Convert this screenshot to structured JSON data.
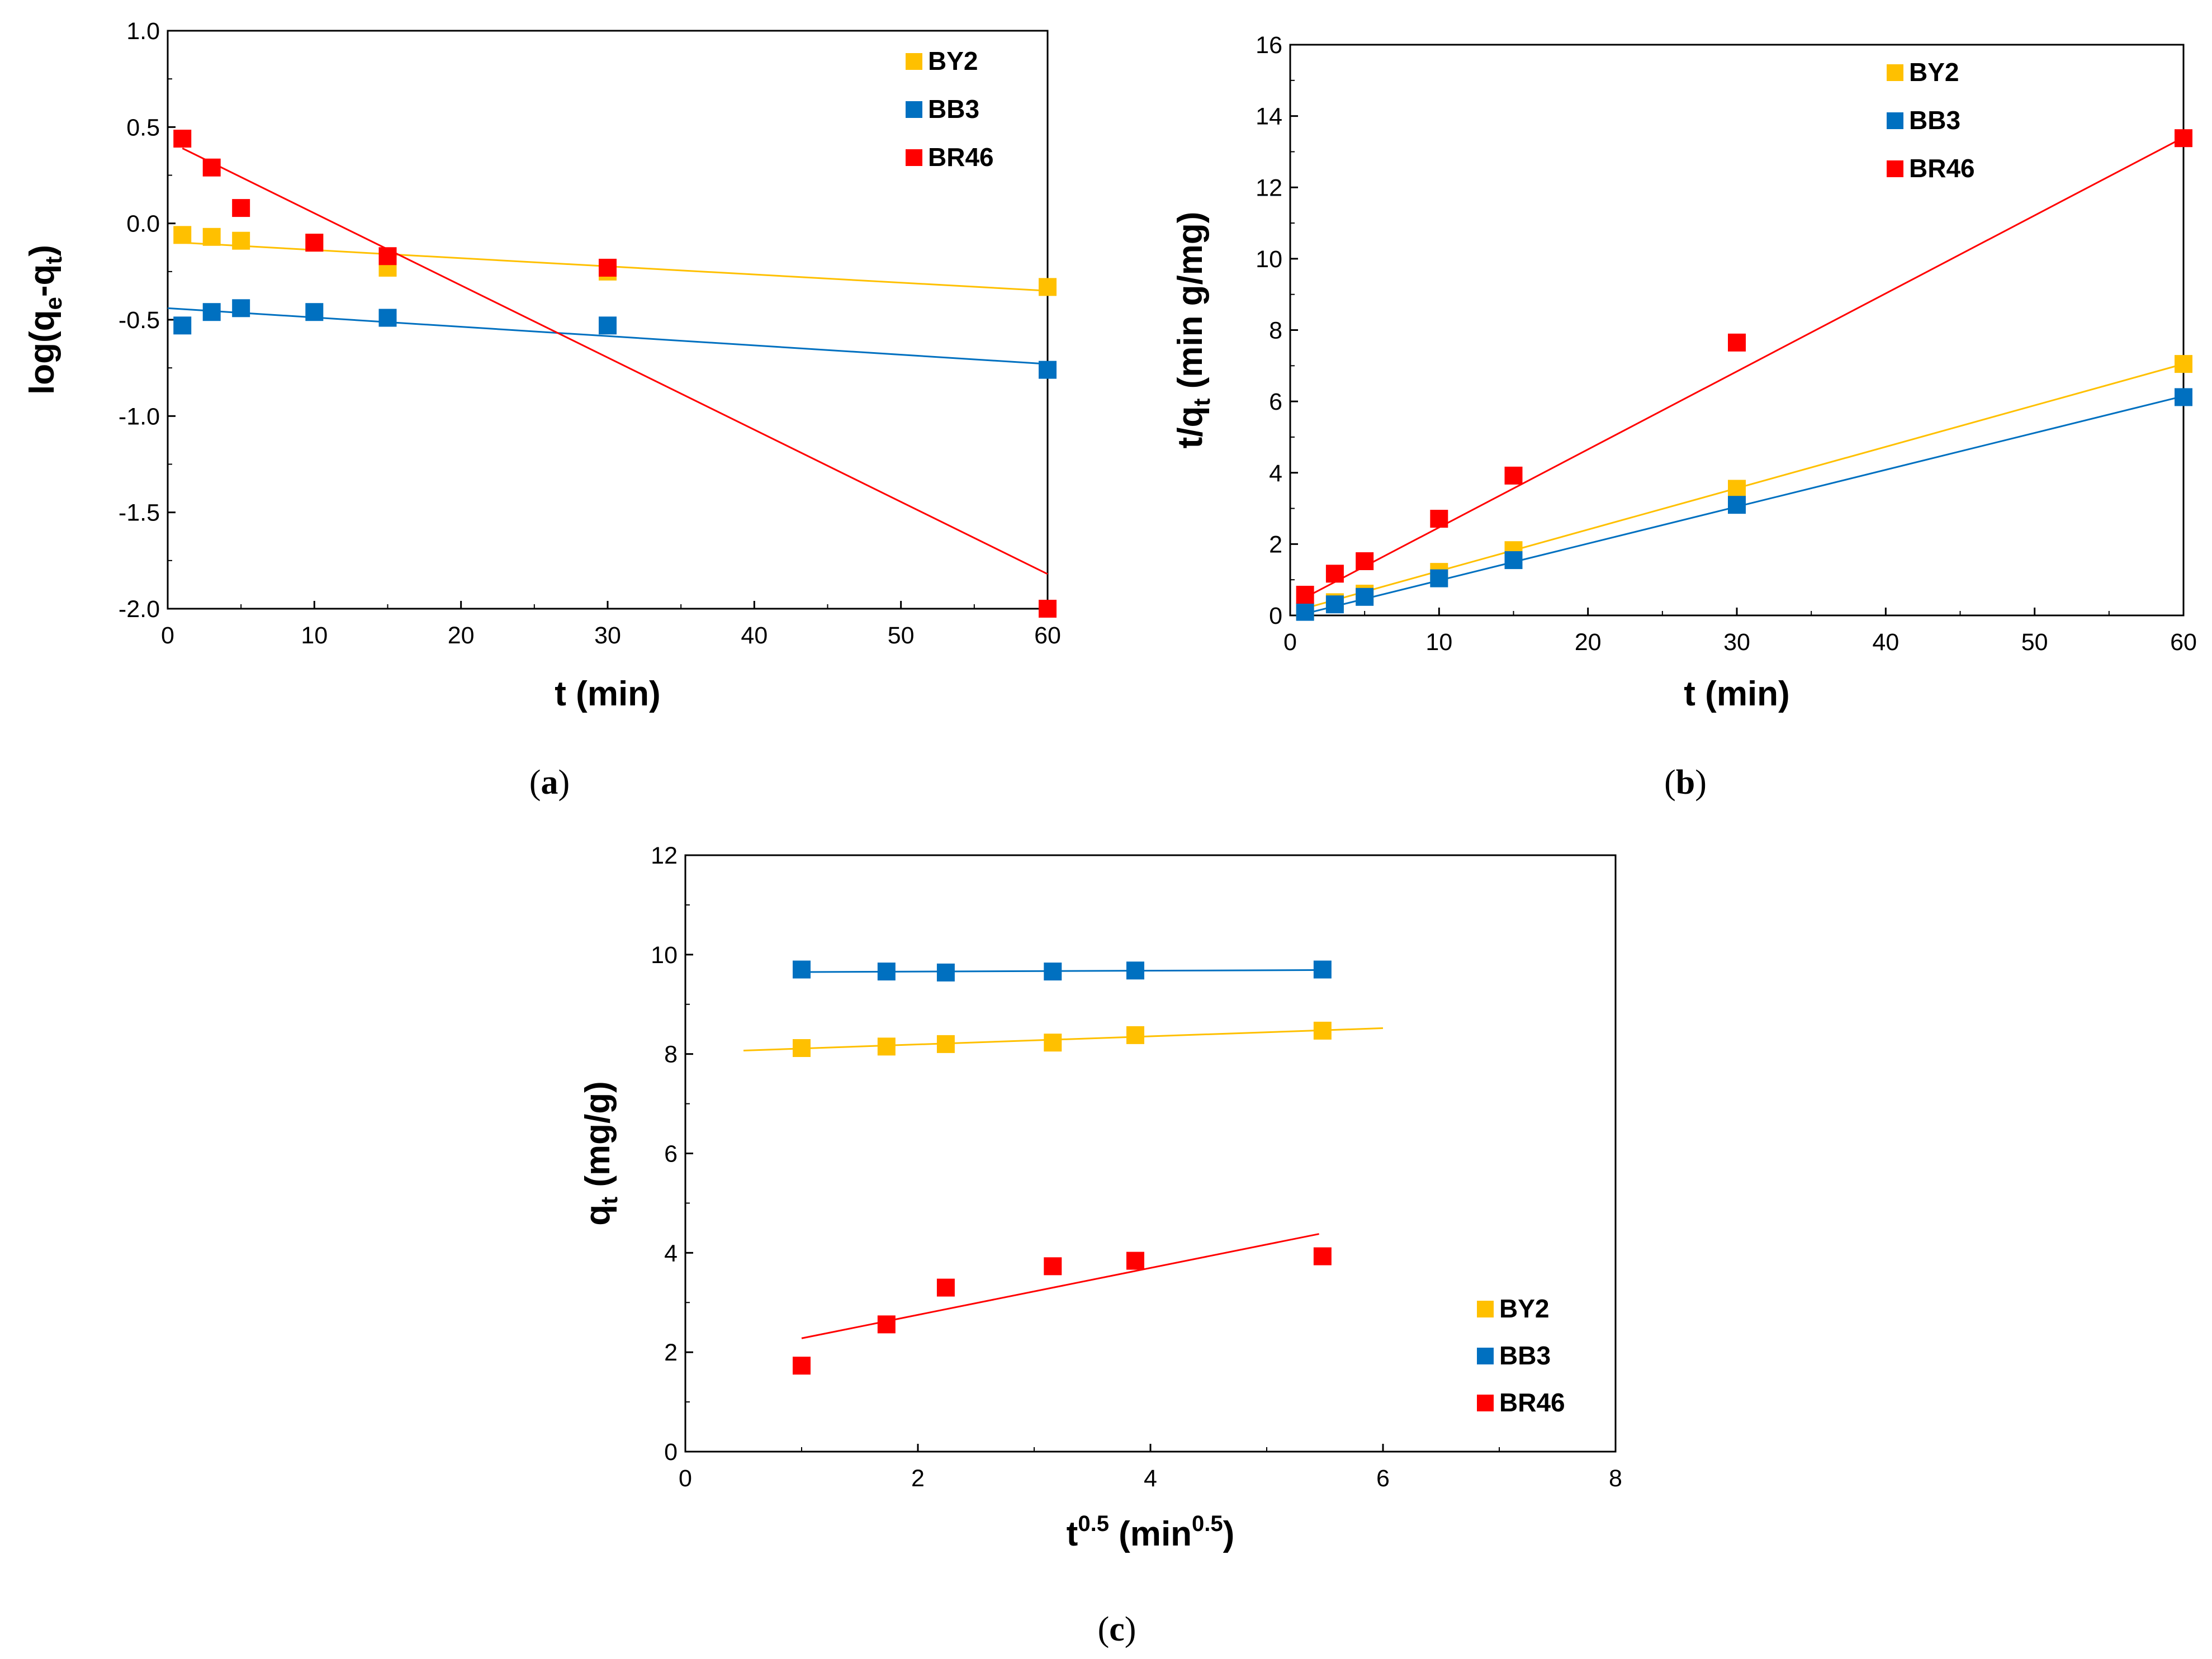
{
  "colors": {
    "BY2": "#FFC000",
    "BB3": "#0070C0",
    "BR46": "#FF0000",
    "axis": "#000000"
  },
  "chart_data": [
    {
      "id": "a",
      "type": "scatter",
      "caption_letter": "a",
      "xlabel": "t (min)",
      "ylabel_parts": {
        "base": "log(q",
        "sub1": "e",
        "mid": "-q",
        "sub2": "t",
        "end": ")"
      },
      "xlim": [
        0,
        60
      ],
      "ylim": [
        -2.0,
        1.0
      ],
      "xticks": [
        0,
        10,
        20,
        30,
        40,
        50,
        60
      ],
      "yticks": [
        -2.0,
        -1.5,
        -1.0,
        -0.5,
        0.0,
        0.5,
        1.0
      ],
      "ytick_labels": [
        "-2.0",
        "-1.5",
        "-1.0",
        "-0.5",
        "0.0",
        "0.5",
        "1.0"
      ],
      "legend_position": "top-right",
      "series": [
        {
          "name": "BY2",
          "color": "#FFC000",
          "x": [
            1,
            3,
            5,
            10,
            15,
            30,
            60
          ],
          "y": [
            -0.06,
            -0.07,
            -0.09,
            -0.1,
            -0.23,
            -0.25,
            -0.33
          ],
          "fit": {
            "x": [
              1,
              60
            ],
            "y": [
              -0.1,
              -0.35
            ]
          }
        },
        {
          "name": "BB3",
          "color": "#0070C0",
          "x": [
            1,
            3,
            5,
            10,
            15,
            30,
            60
          ],
          "y": [
            -0.53,
            -0.46,
            -0.44,
            -0.46,
            -0.49,
            -0.53,
            -0.76
          ],
          "fit": {
            "x": [
              0,
              60
            ],
            "y": [
              -0.44,
              -0.73
            ]
          }
        },
        {
          "name": "BR46",
          "color": "#FF0000",
          "x": [
            1,
            3,
            5,
            10,
            15,
            30,
            60
          ],
          "y": [
            0.44,
            0.29,
            0.08,
            -0.1,
            -0.17,
            -0.23,
            -2.0
          ],
          "fit": {
            "x": [
              1,
              60
            ],
            "y": [
              0.39,
              -1.82
            ]
          }
        }
      ]
    },
    {
      "id": "b",
      "type": "scatter",
      "caption_letter": "b",
      "xlabel": "t (min)",
      "ylabel_parts": {
        "base": "t/q",
        "sub1": "t",
        "mid": " (min g/mg)",
        "sub2": "",
        "end": ""
      },
      "xlim": [
        0,
        60
      ],
      "ylim": [
        0,
        16
      ],
      "xticks": [
        0,
        10,
        20,
        30,
        40,
        50,
        60
      ],
      "yticks": [
        0,
        2,
        4,
        6,
        8,
        10,
        12,
        14,
        16
      ],
      "ytick_labels": [
        "0",
        "2",
        "4",
        "6",
        "8",
        "10",
        "12",
        "14",
        "16"
      ],
      "legend_position": "top-left",
      "series": [
        {
          "name": "BY2",
          "color": "#FFC000",
          "x": [
            1,
            3,
            5,
            10,
            15,
            30,
            60
          ],
          "y": [
            0.12,
            0.37,
            0.61,
            1.22,
            1.83,
            3.55,
            7.05
          ],
          "fit": {
            "x": [
              1,
              60
            ],
            "y": [
              0.2,
              7.05
            ]
          }
        },
        {
          "name": "BB3",
          "color": "#0070C0",
          "x": [
            1,
            3,
            5,
            10,
            15,
            30,
            60
          ],
          "y": [
            0.1,
            0.31,
            0.52,
            1.04,
            1.55,
            3.1,
            6.12
          ],
          "fit": {
            "x": [
              1,
              60
            ],
            "y": [
              0.05,
              6.15
            ]
          }
        },
        {
          "name": "BR46",
          "color": "#FF0000",
          "x": [
            1,
            3,
            5,
            10,
            15,
            30,
            60
          ],
          "y": [
            0.58,
            1.17,
            1.52,
            2.71,
            3.92,
            7.65,
            13.38
          ],
          "fit": {
            "x": [
              1,
              60
            ],
            "y": [
              0.5,
              13.4
            ]
          }
        }
      ]
    },
    {
      "id": "c",
      "type": "scatter",
      "caption_letter": "c",
      "xlabel_parts": {
        "base": "t",
        "sup1": "0.5",
        "mid": " (min",
        "sup2": "0.5",
        "end": ")"
      },
      "ylabel_parts": {
        "base": "q",
        "sub1": "t",
        "mid": " (mg/g)",
        "sub2": "",
        "end": ""
      },
      "xlim": [
        0,
        8
      ],
      "ylim": [
        0,
        12
      ],
      "xticks": [
        0,
        2,
        4,
        6,
        8
      ],
      "yticks": [
        0,
        2,
        4,
        6,
        8,
        10,
        12
      ],
      "ytick_labels": [
        "0",
        "2",
        "4",
        "6",
        "8",
        "10",
        "12"
      ],
      "legend_position": "bottom-right",
      "series": [
        {
          "name": "BY2",
          "color": "#FFC000",
          "x": [
            1.0,
            1.73,
            2.24,
            3.16,
            3.87,
            5.48
          ],
          "y": [
            8.12,
            8.15,
            8.2,
            8.23,
            8.38,
            8.47
          ],
          "fit": {
            "x": [
              0.5,
              6.0
            ],
            "y": [
              8.07,
              8.52
            ]
          }
        },
        {
          "name": "BB3",
          "color": "#0070C0",
          "x": [
            1.0,
            1.73,
            2.24,
            3.16,
            3.87,
            5.48
          ],
          "y": [
            9.7,
            9.66,
            9.64,
            9.66,
            9.68,
            9.7
          ],
          "fit": {
            "x": [
              1.0,
              5.5
            ],
            "y": [
              9.65,
              9.69
            ]
          }
        },
        {
          "name": "BR46",
          "color": "#FF0000",
          "x": [
            1.0,
            1.73,
            2.24,
            3.16,
            3.87,
            5.48
          ],
          "y": [
            1.73,
            2.56,
            3.3,
            3.73,
            3.84,
            3.93
          ],
          "fit": {
            "x": [
              1.0,
              5.45
            ],
            "y": [
              2.28,
              4.38
            ]
          }
        }
      ]
    }
  ]
}
